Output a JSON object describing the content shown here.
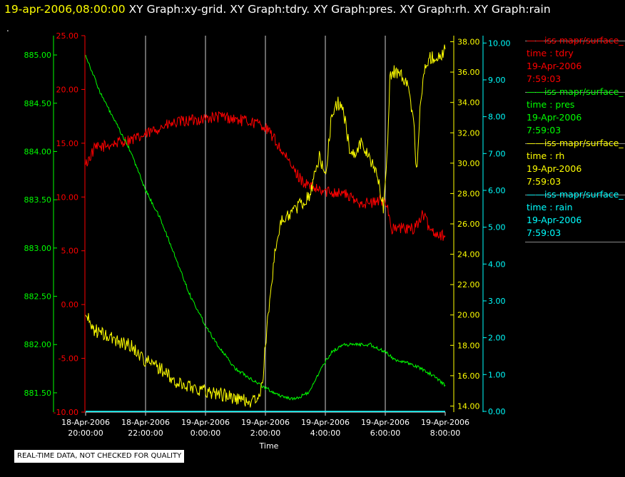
{
  "header": {
    "timestamp": "19-apr-2006,08:00:00",
    "titles": [
      "XY Graph:xy-grid.",
      "XY Graph:tdry.",
      "XY Graph:pres.",
      "XY Graph:rh.",
      "XY Graph:rain"
    ]
  },
  "dot": ".",
  "quality_note": "REAL-TIME DATA, NOT CHECKED FOR QUALITY",
  "colors": {
    "tdry": "#ff0000",
    "pres": "#00ff00",
    "rh": "#ffff00",
    "rain": "#00ffff",
    "grid": "#d0d0d0"
  },
  "legend": [
    {
      "series": "iss-mapr/surface_",
      "var": "time : tdry",
      "date": "19-Apr-2006",
      "time": "7:59:03",
      "color": "#ff0000"
    },
    {
      "series": "iss-mapr/surface_",
      "var": "time : pres",
      "date": "19-Apr-2006",
      "time": "7:59:03",
      "color": "#00ff00"
    },
    {
      "series": "iss-mapr/surface_",
      "var": "time : rh",
      "date": "19-Apr-2006",
      "time": "7:59:03",
      "color": "#ffff00"
    },
    {
      "series": "iss-mapr/surface_",
      "var": "time : rain",
      "date": "19-Apr-2006",
      "time": "7:59:03",
      "color": "#00ffff"
    }
  ],
  "chart_data": {
    "type": "line",
    "xlabel": "Time",
    "x_ticks": [
      {
        "date": "18-Apr-2006",
        "time": "20:00:00",
        "h": 0
      },
      {
        "date": "18-Apr-2006",
        "time": "22:00:00",
        "h": 2
      },
      {
        "date": "19-Apr-2006",
        "time": "0:00:00",
        "h": 4
      },
      {
        "date": "19-Apr-2006",
        "time": "2:00:00",
        "h": 6
      },
      {
        "date": "19-Apr-2006",
        "time": "4:00:00",
        "h": 8
      },
      {
        "date": "19-Apr-2006",
        "time": "6:00:00",
        "h": 10
      },
      {
        "date": "19-Apr-2006",
        "time": "8:00:00",
        "h": 12
      }
    ],
    "xlim_hours": [
      0,
      12
    ],
    "grid": "vertical",
    "axes": [
      {
        "id": "pres",
        "side": "left-outer",
        "color": "#00ff00",
        "ylim": [
          881.3,
          885.2
        ],
        "ticks": [
          "881.50",
          "882.00",
          "882.50",
          "883.00",
          "883.50",
          "884.00",
          "884.50",
          "885.00"
        ]
      },
      {
        "id": "tdry",
        "side": "left-inner",
        "color": "#ff0000",
        "ylim": [
          -10,
          25
        ],
        "ticks": [
          "-10.00",
          "-5.00",
          "0.00",
          "5.00",
          "10.00",
          "15.00",
          "20.00",
          "25.00"
        ]
      },
      {
        "id": "rh",
        "side": "right-inner",
        "color": "#ffff00",
        "ylim": [
          13.6,
          38.4
        ],
        "ticks": [
          "14.00",
          "16.00",
          "18.00",
          "20.00",
          "22.00",
          "24.00",
          "26.00",
          "28.00",
          "30.00",
          "32.00",
          "34.00",
          "36.00",
          "38.00"
        ]
      },
      {
        "id": "rain",
        "side": "right-outer",
        "color": "#00ffff",
        "ylim": [
          -0.02,
          10.2
        ],
        "ticks": [
          "0.00",
          "1.00",
          "2.00",
          "3.00",
          "4.00",
          "5.00",
          "6.00",
          "7.00",
          "8.00",
          "9.00",
          "10.00"
        ]
      }
    ],
    "series": [
      {
        "id": "tdry",
        "axis": "tdry",
        "color": "#ff0000",
        "noise": 0.55,
        "x": [
          0,
          0.3,
          1.0,
          1.8,
          2.5,
          3.2,
          4.0,
          4.6,
          5.0,
          5.5,
          5.9,
          6.2,
          6.6,
          7.0,
          7.3,
          7.6,
          7.9,
          8.2,
          8.6,
          9.0,
          9.5,
          9.9,
          10.05,
          10.2,
          10.5,
          10.9,
          11.1,
          11.25,
          11.5,
          11.8,
          12.0
        ],
        "y": [
          13.0,
          14.5,
          15.0,
          15.5,
          16.5,
          17.0,
          17.3,
          17.5,
          17.2,
          17.0,
          16.7,
          15.8,
          14.0,
          12.3,
          11.3,
          10.8,
          10.5,
          10.5,
          10.4,
          9.6,
          9.4,
          9.7,
          9.6,
          7.0,
          7.1,
          7.0,
          7.6,
          8.4,
          7.0,
          6.5,
          6.4
        ]
      },
      {
        "id": "pres",
        "axis": "pres",
        "color": "#00ff00",
        "noise": 0.018,
        "x": [
          0,
          0.5,
          1.0,
          1.5,
          2.0,
          2.5,
          3.0,
          3.5,
          4.0,
          4.5,
          5.0,
          5.5,
          6.0,
          6.5,
          7.0,
          7.5,
          7.8,
          8.2,
          8.6,
          9.0,
          9.5,
          9.8,
          10.0,
          10.3,
          10.6,
          11.0,
          11.5,
          12.0
        ],
        "y": [
          885.0,
          884.6,
          884.3,
          884.0,
          883.6,
          883.3,
          882.9,
          882.5,
          882.2,
          881.95,
          881.75,
          881.65,
          881.55,
          881.47,
          881.43,
          881.52,
          881.72,
          881.92,
          882.0,
          882.0,
          882.0,
          881.95,
          881.92,
          881.85,
          881.82,
          881.78,
          881.7,
          881.58
        ]
      },
      {
        "id": "rh",
        "axis": "rh",
        "color": "#ffff00",
        "noise": 0.45,
        "x": [
          0,
          0.3,
          0.8,
          1.5,
          2.0,
          2.5,
          3.0,
          3.5,
          4.0,
          4.5,
          5.0,
          5.5,
          5.8,
          5.9,
          6.0,
          6.1,
          6.3,
          6.5,
          6.7,
          7.0,
          7.3,
          7.5,
          7.8,
          8.0,
          8.2,
          8.4,
          8.6,
          8.8,
          9.0,
          9.2,
          9.4,
          9.6,
          9.8,
          9.95,
          10.05,
          10.15,
          10.25,
          10.5,
          10.75,
          10.95,
          11.05,
          11.15,
          11.3,
          11.5,
          11.8,
          12.0
        ],
        "y": [
          20.0,
          19.0,
          18.5,
          18.0,
          17.0,
          16.5,
          15.5,
          15.3,
          15.0,
          14.8,
          14.5,
          14.3,
          14.5,
          15.5,
          18.0,
          20.0,
          24.0,
          26.0,
          26.5,
          27.0,
          27.5,
          28.0,
          30.5,
          29.0,
          33.0,
          34.0,
          33.5,
          31.0,
          30.5,
          31.5,
          30.5,
          30.0,
          28.5,
          27.0,
          30.0,
          35.5,
          36.0,
          36.0,
          35.0,
          33.0,
          29.0,
          33.5,
          36.0,
          37.0,
          37.0,
          37.5
        ]
      },
      {
        "id": "rain",
        "axis": "rain",
        "color": "#00ffff",
        "noise": 0,
        "x": [
          0,
          12
        ],
        "y": [
          0.0,
          0.0
        ]
      }
    ]
  }
}
